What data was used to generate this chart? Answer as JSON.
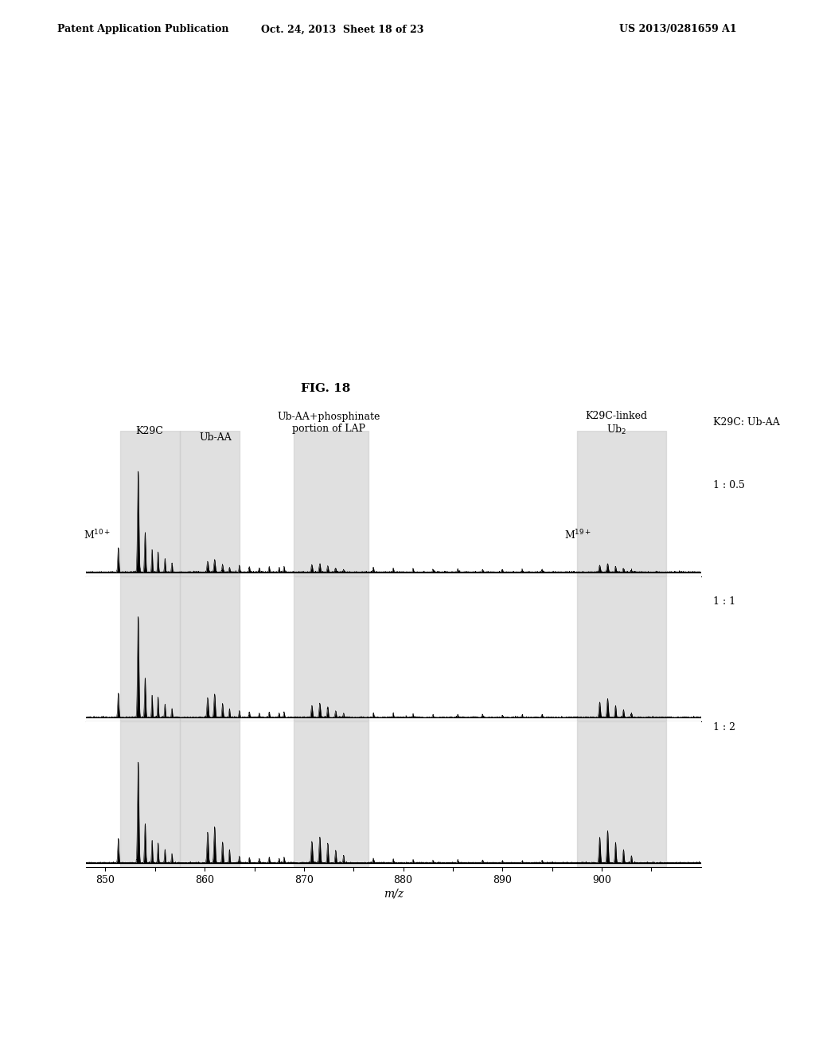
{
  "title": "FIG. 18",
  "header_left": "Patent Application Publication",
  "header_center": "Oct. 24, 2013  Sheet 18 of 23",
  "header_right": "US 2013/0281659 A1",
  "xlabel": "m/z",
  "xmin": 848,
  "xmax": 910,
  "xticks": [
    850,
    855,
    860,
    865,
    870,
    875,
    880,
    885,
    890,
    895,
    900,
    905
  ],
  "xtick_labels": [
    "850",
    "",
    "860",
    "",
    "870",
    "",
    "880",
    "",
    "890",
    "",
    "900",
    ""
  ],
  "ratios": [
    "1 : 0.5",
    "1 : 1",
    "1 : 2"
  ],
  "right_label_top": "K29C: Ub-AA",
  "highlight_regions": [
    {
      "xmin": 851.5,
      "xmax": 857.5
    },
    {
      "xmin": 857.5,
      "xmax": 863.5
    },
    {
      "xmin": 869.0,
      "xmax": 876.5
    },
    {
      "xmin": 897.5,
      "xmax": 906.5
    }
  ],
  "background_color": "#ffffff",
  "highlight_color": "#cccccc"
}
